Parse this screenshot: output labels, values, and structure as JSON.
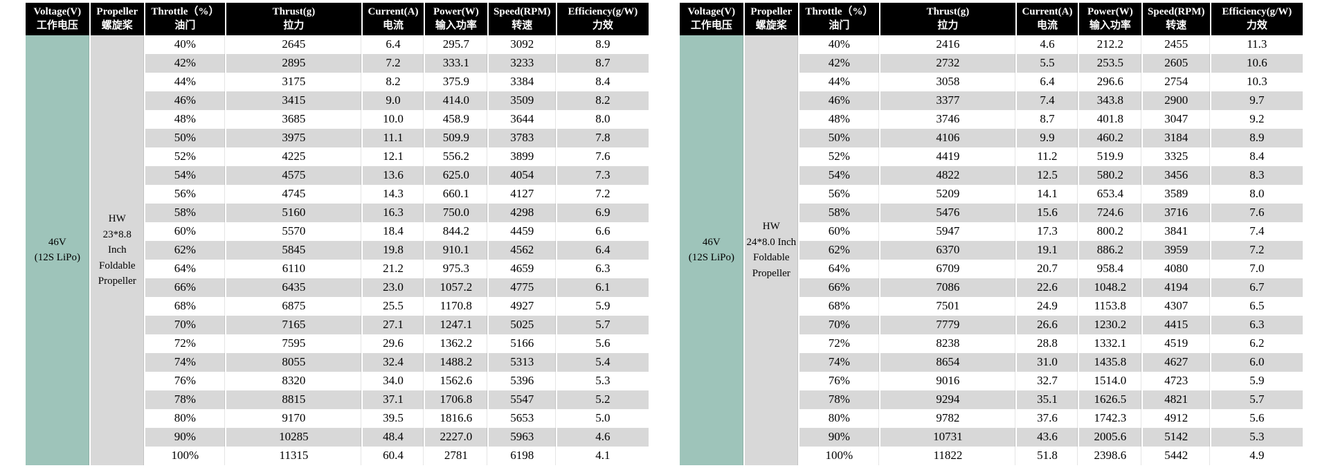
{
  "colors": {
    "header_bg": "#000000",
    "header_text": "#ffffff",
    "voltage_cell_bg": "#9ec4ba",
    "propeller_cell_bg": "#d8d8d8",
    "stripe_bg": "#d8d8d8",
    "white_row_bg": "#ffffff",
    "body_text": "#000000"
  },
  "columns": [
    {
      "key": "voltage",
      "en": "Voltage(V)",
      "zh": "工作电压",
      "width_pct": 10.3
    },
    {
      "key": "propeller",
      "en": "Propeller",
      "zh": "螺旋桨",
      "width_pct": 8.8
    },
    {
      "key": "throttle",
      "en": "Throttle（%）",
      "zh": "油门",
      "width_pct": 13.0
    },
    {
      "key": "thrust",
      "en": "Thrust(g)",
      "zh": "拉力",
      "width_pct": 21.9
    },
    {
      "key": "current",
      "en": "Current(A)",
      "zh": "电流",
      "width_pct": 10.0
    },
    {
      "key": "power",
      "en": "Power(W)",
      "zh": "输入功率",
      "width_pct": 10.2
    },
    {
      "key": "speed",
      "en": "Speed(RPM)",
      "zh": "转速",
      "width_pct": 11.0
    },
    {
      "key": "efficiency",
      "en": "Efficiency(g/W)",
      "zh": "力效",
      "width_pct": 14.8
    }
  ],
  "tables": [
    {
      "id": "left",
      "voltage_lines": [
        "46V",
        "(12S LiPo)"
      ],
      "propeller_lines": [
        "HW",
        "23*8.8",
        "Inch",
        "Foldable",
        "Propeller"
      ],
      "rows": [
        [
          "40%",
          "2645",
          "6.4",
          "295.7",
          "3092",
          "8.9"
        ],
        [
          "42%",
          "2895",
          "7.2",
          "333.1",
          "3233",
          "8.7"
        ],
        [
          "44%",
          "3175",
          "8.2",
          "375.9",
          "3384",
          "8.4"
        ],
        [
          "46%",
          "3415",
          "9.0",
          "414.0",
          "3509",
          "8.2"
        ],
        [
          "48%",
          "3685",
          "10.0",
          "458.9",
          "3644",
          "8.0"
        ],
        [
          "50%",
          "3975",
          "11.1",
          "509.9",
          "3783",
          "7.8"
        ],
        [
          "52%",
          "4225",
          "12.1",
          "556.2",
          "3899",
          "7.6"
        ],
        [
          "54%",
          "4575",
          "13.6",
          "625.0",
          "4054",
          "7.3"
        ],
        [
          "56%",
          "4745",
          "14.3",
          "660.1",
          "4127",
          "7.2"
        ],
        [
          "58%",
          "5160",
          "16.3",
          "750.0",
          "4298",
          "6.9"
        ],
        [
          "60%",
          "5570",
          "18.4",
          "844.2",
          "4459",
          "6.6"
        ],
        [
          "62%",
          "5845",
          "19.8",
          "910.1",
          "4562",
          "6.4"
        ],
        [
          "64%",
          "6110",
          "21.2",
          "975.3",
          "4659",
          "6.3"
        ],
        [
          "66%",
          "6435",
          "23.0",
          "1057.2",
          "4775",
          "6.1"
        ],
        [
          "68%",
          "6875",
          "25.5",
          "1170.8",
          "4927",
          "5.9"
        ],
        [
          "70%",
          "7165",
          "27.1",
          "1247.1",
          "5025",
          "5.7"
        ],
        [
          "72%",
          "7595",
          "29.6",
          "1362.2",
          "5166",
          "5.6"
        ],
        [
          "74%",
          "8055",
          "32.4",
          "1488.2",
          "5313",
          "5.4"
        ],
        [
          "76%",
          "8320",
          "34.0",
          "1562.6",
          "5396",
          "5.3"
        ],
        [
          "78%",
          "8815",
          "37.1",
          "1706.8",
          "5547",
          "5.2"
        ],
        [
          "80%",
          "9170",
          "39.5",
          "1816.6",
          "5653",
          "5.0"
        ],
        [
          "90%",
          "10285",
          "48.4",
          "2227.0",
          "5963",
          "4.6"
        ],
        [
          "100%",
          "11315",
          "60.4",
          "2781",
          "6198",
          "4.1"
        ]
      ]
    },
    {
      "id": "right",
      "voltage_lines": [
        "46V",
        "(12S LiPo)"
      ],
      "propeller_lines": [
        "HW",
        "24*8.0 Inch",
        "Foldable",
        "Propeller"
      ],
      "rows": [
        [
          "40%",
          "2416",
          "4.6",
          "212.2",
          "2455",
          "11.3"
        ],
        [
          "42%",
          "2732",
          "5.5",
          "253.5",
          "2605",
          "10.6"
        ],
        [
          "44%",
          "3058",
          "6.4",
          "296.6",
          "2754",
          "10.3"
        ],
        [
          "46%",
          "3377",
          "7.4",
          "343.8",
          "2900",
          "9.7"
        ],
        [
          "48%",
          "3746",
          "8.7",
          "401.8",
          "3047",
          "9.2"
        ],
        [
          "50%",
          "4106",
          "9.9",
          "460.2",
          "3184",
          "8.9"
        ],
        [
          "52%",
          "4419",
          "11.2",
          "519.9",
          "3325",
          "8.4"
        ],
        [
          "54%",
          "4822",
          "12.5",
          "580.2",
          "3456",
          "8.3"
        ],
        [
          "56%",
          "5209",
          "14.1",
          "653.4",
          "3589",
          "8.0"
        ],
        [
          "58%",
          "5476",
          "15.6",
          "724.6",
          "3716",
          "7.6"
        ],
        [
          "60%",
          "5947",
          "17.3",
          "800.2",
          "3841",
          "7.4"
        ],
        [
          "62%",
          "6370",
          "19.1",
          "886.2",
          "3959",
          "7.2"
        ],
        [
          "64%",
          "6709",
          "20.7",
          "958.4",
          "4080",
          "7.0"
        ],
        [
          "66%",
          "7086",
          "22.6",
          "1048.2",
          "4194",
          "6.7"
        ],
        [
          "68%",
          "7501",
          "24.9",
          "1153.8",
          "4307",
          "6.5"
        ],
        [
          "70%",
          "7779",
          "26.6",
          "1230.2",
          "4415",
          "6.3"
        ],
        [
          "72%",
          "8238",
          "28.8",
          "1332.1",
          "4519",
          "6.2"
        ],
        [
          "74%",
          "8654",
          "31.0",
          "1435.8",
          "4627",
          "6.0"
        ],
        [
          "76%",
          "9016",
          "32.7",
          "1514.0",
          "4723",
          "5.9"
        ],
        [
          "78%",
          "9294",
          "35.1",
          "1626.5",
          "4821",
          "5.7"
        ],
        [
          "80%",
          "9782",
          "37.6",
          "1742.3",
          "4912",
          "5.6"
        ],
        [
          "90%",
          "10731",
          "43.6",
          "2005.6",
          "5142",
          "5.3"
        ],
        [
          "100%",
          "11822",
          "51.8",
          "2398.6",
          "5442",
          "4.9"
        ]
      ]
    }
  ]
}
